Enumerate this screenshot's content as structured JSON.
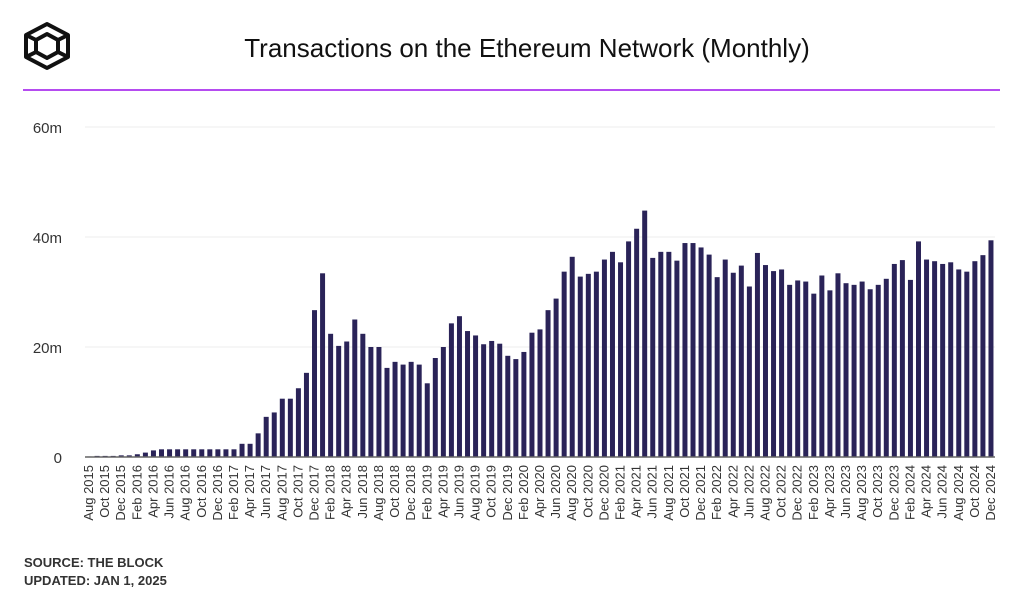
{
  "header": {
    "title": "Transactions on the Ethereum Network (Monthly)",
    "logo": "The Block cube logo"
  },
  "footer": {
    "source": "SOURCE: THE BLOCK",
    "updated": "UPDATED: JAN 1, 2025"
  },
  "colors": {
    "bar": "#2a2358",
    "accent": "#b54cf0",
    "grid": "#ececec"
  },
  "chart_data": {
    "type": "bar",
    "title": "Transactions on the Ethereum Network (Monthly)",
    "xlabel": "",
    "ylabel": "",
    "ylim": [
      0,
      60
    ],
    "yticks": [
      {
        "v": 0,
        "label": "0"
      },
      {
        "v": 20,
        "label": "20m"
      },
      {
        "v": 40,
        "label": "40m"
      },
      {
        "v": 60,
        "label": "60m"
      }
    ],
    "grid": true,
    "start": {
      "year": 2015,
      "month": 8
    },
    "values": [
      0.1,
      0.2,
      0.2,
      0.2,
      0.3,
      0.3,
      0.5,
      0.8,
      1.2,
      1.4,
      1.4,
      1.4,
      1.4,
      1.4,
      1.4,
      1.4,
      1.4,
      1.4,
      1.4,
      2.4,
      2.4,
      4.3,
      7.3,
      8.1,
      10.6,
      10.6,
      12.5,
      15.3,
      26.7,
      33.4,
      22.4,
      20.2,
      21.0,
      25.0,
      22.4,
      20.0,
      20.0,
      16.2,
      17.3,
      16.8,
      17.3,
      16.8,
      13.4,
      18.0,
      20.0,
      24.3,
      25.6,
      22.9,
      22.1,
      20.5,
      21.1,
      20.6,
      18.4,
      17.8,
      19.1,
      22.6,
      23.2,
      26.7,
      28.8,
      33.7,
      36.4,
      32.8,
      33.3,
      33.7,
      35.9,
      37.3,
      35.4,
      39.2,
      41.5,
      44.8,
      36.2,
      37.3,
      37.3,
      35.7,
      38.9,
      38.9,
      38.1,
      36.8,
      32.7,
      35.9,
      33.5,
      34.8,
      31.0,
      37.1,
      34.9,
      33.8,
      34.1,
      31.3,
      32.1,
      31.9,
      29.7,
      33.0,
      30.3,
      33.4,
      31.6,
      31.3,
      31.9,
      30.5,
      31.3,
      32.4,
      35.1,
      35.8,
      32.2,
      39.2,
      35.9,
      35.6,
      35.1,
      35.4,
      34.1,
      33.7,
      35.6,
      36.7,
      39.4
    ],
    "units": "millions of transactions",
    "xtick_every": 2
  }
}
